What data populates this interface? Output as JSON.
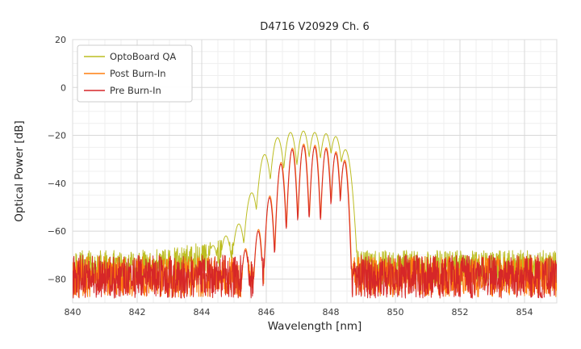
{
  "chart_data": {
    "type": "line",
    "title": "D4716 V20929 Ch. 6",
    "xlabel": "Wavelength [nm]",
    "ylabel": "Optical Power [dB]",
    "xlim": [
      840,
      855
    ],
    "ylim": [
      -90,
      20
    ],
    "xticks": [
      840,
      842,
      844,
      846,
      848,
      850,
      852,
      854
    ],
    "xtick_labels": [
      "840",
      "842",
      "844",
      "846",
      "848",
      "850",
      "852",
      "854"
    ],
    "yticks": [
      20,
      0,
      -20,
      -40,
      -60,
      -80
    ],
    "ytick_labels": [
      "20",
      "0",
      "−20",
      "−40",
      "−60",
      "−80"
    ],
    "grid": {
      "x_minor_step": 0.5,
      "y_minor_step": 5,
      "major_color": "#d8d8d8",
      "minor_color": "#efefef",
      "border_color": "#dcdcdc"
    },
    "legend": {
      "position": "upper-left"
    },
    "series": [
      {
        "name": "OptoBoard QA",
        "color": "#bcbd22",
        "noise_floor": -75.5,
        "noise_amp": 7.5,
        "noise_bump": {
          "x": 845.0,
          "sigma": 1.1,
          "amp": 5
        },
        "lobe_halfwidth": 0.2,
        "lobe_k": 14,
        "lobes": [
          [
            844.35,
            -66
          ],
          [
            844.75,
            -62
          ],
          [
            845.15,
            -57
          ],
          [
            845.55,
            -44
          ],
          [
            845.95,
            -28
          ],
          [
            846.35,
            -21
          ],
          [
            846.75,
            -18.8
          ],
          [
            847.15,
            -18.2
          ],
          [
            847.5,
            -18.8
          ],
          [
            847.85,
            -19.3
          ],
          [
            848.15,
            -20.5
          ],
          [
            848.45,
            -26
          ]
        ]
      },
      {
        "name": "Post Burn-In",
        "color": "#ff7f0e",
        "noise_floor": -79,
        "noise_amp": 8.5,
        "noise_bump": null,
        "lobe_halfwidth": 0.16,
        "lobe_k": 26,
        "lobes": [
          [
            845.36,
            -67.3
          ],
          [
            845.76,
            -59.3
          ],
          [
            846.11,
            -45.3
          ],
          [
            846.46,
            -31.3
          ],
          [
            846.81,
            -25.3
          ],
          [
            847.16,
            -23.6
          ],
          [
            847.51,
            -24.1
          ],
          [
            847.86,
            -25.1
          ],
          [
            848.16,
            -26.8
          ],
          [
            848.43,
            -30.3
          ]
        ]
      },
      {
        "name": "Pre Burn-In",
        "color": "#d62728",
        "noise_floor": -79,
        "noise_amp": 9,
        "noise_bump": null,
        "lobe_halfwidth": 0.16,
        "lobe_k": 26,
        "lobes": [
          [
            845.35,
            -68
          ],
          [
            845.75,
            -60
          ],
          [
            846.1,
            -46
          ],
          [
            846.45,
            -32
          ],
          [
            846.8,
            -26
          ],
          [
            847.15,
            -24.3
          ],
          [
            847.5,
            -24.8
          ],
          [
            847.85,
            -25.8
          ],
          [
            848.15,
            -27.5
          ],
          [
            848.42,
            -31
          ]
        ]
      }
    ]
  }
}
